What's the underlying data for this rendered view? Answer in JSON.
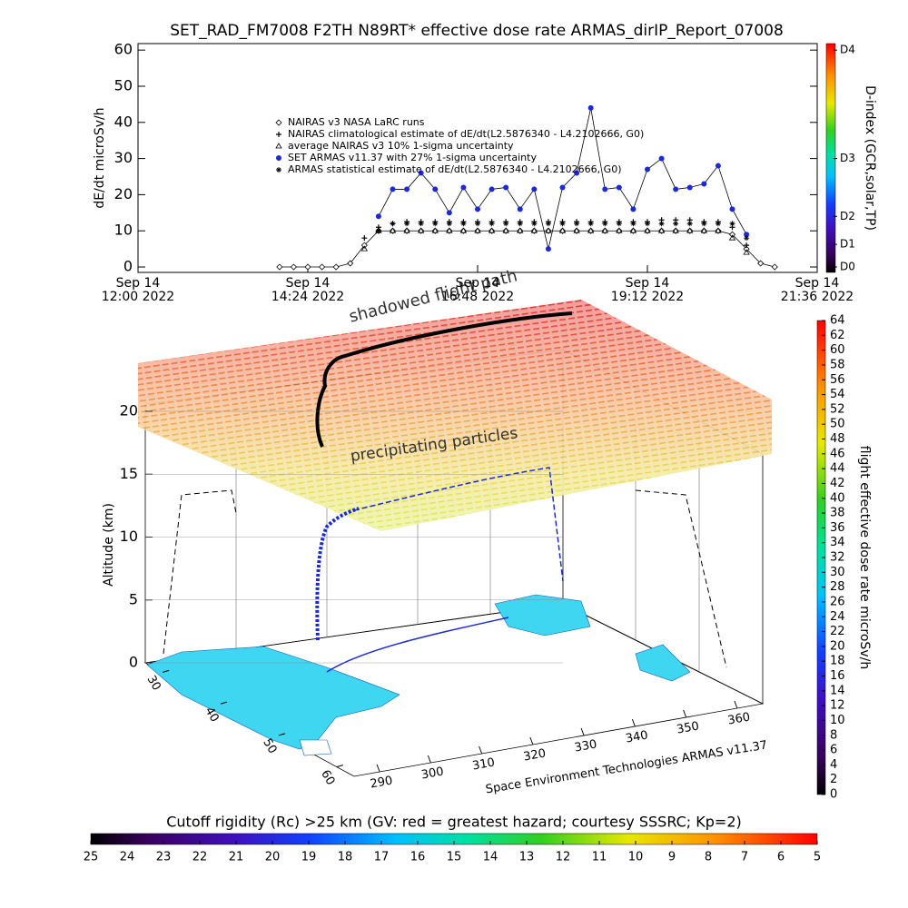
{
  "chart_data": [
    {
      "type": "line",
      "title": "SET_RAD_FM7008  F2TH N89RT* effective dose rate ARMAS_dirIP_Report_07008",
      "ylabel": "dE/dt microSv/h",
      "x": [
        14,
        14.2,
        14.4,
        14.6,
        14.8,
        15,
        15.2,
        15.4,
        15.6,
        15.8,
        16,
        16.2,
        16.4,
        16.6,
        16.8,
        17,
        17.2,
        17.4,
        17.6,
        17.8,
        18,
        18.2,
        18.4,
        18.6,
        18.8,
        19,
        19.2,
        19.4,
        19.6,
        19.8,
        20,
        20.2,
        20.4,
        20.6,
        20.8,
        21
      ],
      "xlim": [
        12,
        21.6
      ],
      "xticks": [
        {
          "value": 12,
          "label": "Sep 14\n12:00 2022"
        },
        {
          "value": 14.4,
          "label": "Sep 14\n14:24 2022"
        },
        {
          "value": 16.8,
          "label": "Sep 14\n16:48 2022"
        },
        {
          "value": 19.2,
          "label": "Sep 14\n19:12 2022"
        },
        {
          "value": 21.6,
          "label": "Sep 14\n21:36 2022"
        }
      ],
      "ylim": [
        -1.5,
        61.8
      ],
      "yticks": [
        0,
        10,
        20,
        30,
        40,
        50,
        60
      ],
      "y2label": "D-index (GCR,solar,TP)",
      "y2lim": [
        -1.5,
        61.8
      ],
      "y2ticks": [
        {
          "value": 0,
          "label": "D0"
        },
        {
          "value": 6.25,
          "label": "D1"
        },
        {
          "value": 14,
          "label": "D2"
        },
        {
          "value": 30,
          "label": "D3"
        },
        {
          "value": 60,
          "label": "D4"
        }
      ],
      "series": [
        {
          "name": "NAIRAS v3 NASA LaRC runs",
          "marker": "diamond",
          "color": "#000000",
          "line": true,
          "values": [
            0,
            0,
            0,
            0,
            0,
            1,
            6,
            10,
            10,
            10,
            10,
            10,
            10,
            10,
            10,
            10,
            10,
            10,
            10,
            10,
            10,
            10,
            10,
            10,
            10,
            10,
            10,
            10,
            10,
            10,
            10,
            10,
            9,
            5,
            1,
            0
          ]
        },
        {
          "name": "NAIRAS climatological estimate of dE/dt(L2.5876340 - L4.2102666, G0)",
          "marker": "plus",
          "color": "#000000",
          "line": false,
          "values": [
            null,
            null,
            null,
            null,
            null,
            null,
            8,
            11,
            12,
            12.5,
            12.5,
            12.5,
            12.5,
            12.5,
            12.5,
            12.5,
            12.5,
            12.5,
            12.5,
            12.5,
            12.5,
            12.5,
            12.5,
            12.5,
            12.5,
            12.5,
            12.5,
            13,
            13,
            13,
            12.5,
            12.5,
            11,
            6,
            null,
            null
          ]
        },
        {
          "name": "average NAIRAS v3 10% 1-sigma uncertainty",
          "marker": "triangle",
          "color": "#000000",
          "line": false,
          "values": [
            null,
            null,
            null,
            null,
            null,
            null,
            5,
            10,
            10,
            10,
            10,
            10,
            10,
            10,
            10,
            10,
            10,
            10,
            10,
            10,
            10,
            10,
            10,
            10,
            10,
            10,
            10,
            10,
            10,
            10,
            10,
            10,
            8,
            4,
            null,
            null
          ]
        },
        {
          "name": "SET ARMAS v11.37 with 27% 1-sigma uncertainty",
          "marker": "dot",
          "color": "#1a2ad8",
          "line": true,
          "values": [
            null,
            null,
            null,
            null,
            null,
            null,
            null,
            14,
            21.5,
            21.5,
            26,
            21.5,
            15,
            22,
            16,
            21.5,
            22,
            16,
            21.5,
            5,
            22,
            26,
            44,
            21.5,
            22,
            16,
            27,
            30,
            21.5,
            22,
            23,
            28,
            16,
            9,
            null,
            null
          ]
        },
        {
          "name": "ARMAS statistical estimate of dE/dt(L2.5876340 - L4.2102666, G0)",
          "marker": "asterisk",
          "color": "#000000",
          "line": false,
          "values": [
            null,
            null,
            null,
            null,
            null,
            null,
            null,
            10,
            12,
            12,
            12,
            12,
            12,
            12,
            12,
            12,
            12,
            12,
            12,
            12,
            12,
            12,
            12,
            12,
            12,
            12,
            12,
            12,
            12,
            12,
            12,
            12,
            12,
            8,
            null,
            null
          ]
        }
      ]
    },
    {
      "type": "surface3d",
      "zlabel": "Altitude (km)",
      "zlim": [
        0,
        20
      ],
      "zticks": [
        0,
        5,
        10,
        15,
        20
      ],
      "xlim": [
        285,
        365
      ],
      "xticks": [
        290,
        300,
        310,
        320,
        330,
        340,
        350,
        360
      ],
      "ylim": [
        27,
        63
      ],
      "yticks": [
        30,
        40,
        50,
        60
      ],
      "annotations": [
        "shadowed flight path",
        "precipitating particles"
      ],
      "credit": "Space Environment Technologies ARMAS v11.37"
    },
    {
      "type": "colorbar",
      "orientation": "vertical",
      "label": "flight effective dose rate microSv/h",
      "lim": [
        0,
        64
      ],
      "ticks": [
        0,
        2,
        4,
        6,
        8,
        10,
        12,
        14,
        16,
        18,
        20,
        22,
        24,
        26,
        28,
        30,
        32,
        34,
        36,
        38,
        40,
        42,
        44,
        46,
        48,
        50,
        52,
        54,
        56,
        58,
        60,
        62,
        64
      ]
    },
    {
      "type": "colorbar",
      "orientation": "horizontal",
      "label": "Cutoff rigidity (Rc) >25 km (GV: red = greatest hazard; courtesy SSSRC; Kp=2)",
      "lim": [
        25,
        5
      ],
      "ticks": [
        25,
        24,
        23,
        22,
        21,
        20,
        19,
        18,
        17,
        16,
        15,
        14,
        13,
        12,
        11,
        10,
        9,
        8,
        7,
        6,
        5
      ]
    }
  ]
}
